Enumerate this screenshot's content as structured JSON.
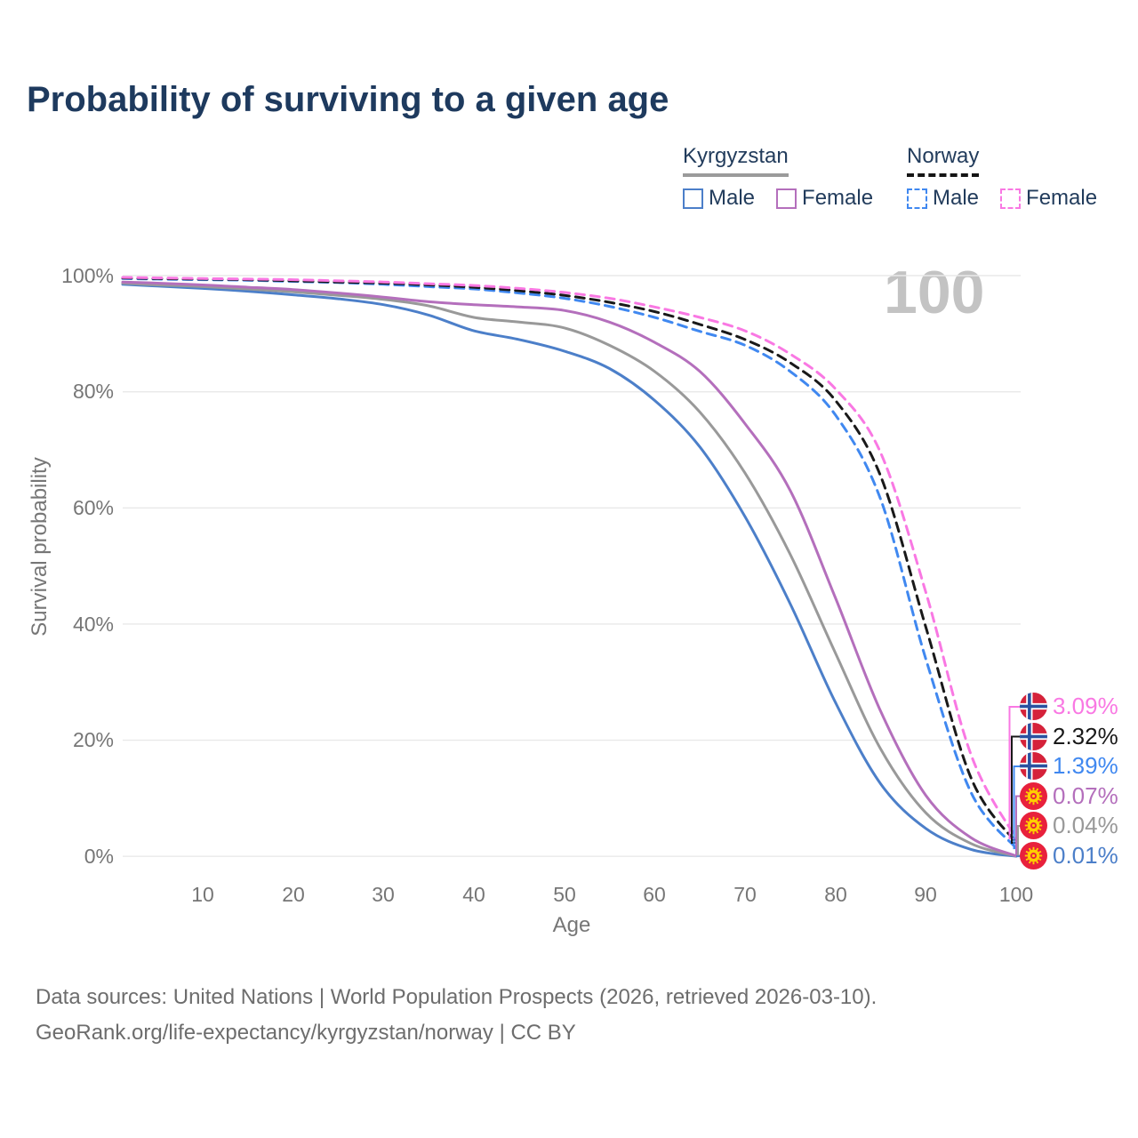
{
  "chart_data": {
    "type": "line",
    "title": "Probability of surviving to a given age",
    "xlabel": "Age",
    "ylabel": "Survival probability",
    "age_watermark": "100",
    "xlim": [
      0,
      100
    ],
    "ylim": [
      0,
      100
    ],
    "grid": "horizontal-only",
    "legend_position": "top-right",
    "x_ticks": [
      "10",
      "20",
      "30",
      "40",
      "50",
      "60",
      "70",
      "80",
      "90",
      "100"
    ],
    "y_ticks": [
      "100%",
      "80%",
      "60%",
      "40%",
      "20%",
      "0%"
    ],
    "x": [
      0,
      5,
      10,
      15,
      20,
      25,
      30,
      35,
      40,
      45,
      50,
      55,
      60,
      65,
      70,
      75,
      80,
      85,
      90,
      95,
      100
    ],
    "series": [
      {
        "id": "norway-female",
        "country": "Norway",
        "sex": "Female",
        "style": "dashed",
        "color": "#f978e3",
        "flag": "norway",
        "end_label": "3.09%",
        "values": [
          99.7,
          99.6,
          99.5,
          99.4,
          99.3,
          99.1,
          98.9,
          98.6,
          98.3,
          97.8,
          97.1,
          96.1,
          94.6,
          92.8,
          90.5,
          86.5,
          80.5,
          69.5,
          45.5,
          17.5,
          3.09
        ]
      },
      {
        "id": "norway-both-sexes",
        "country": "Norway",
        "sex": "Both sexes",
        "style": "dashed",
        "color": "#191919",
        "flag": "norway",
        "end_label": "2.32%",
        "values": [
          99.6,
          99.5,
          99.4,
          99.3,
          99.1,
          98.9,
          98.7,
          98.4,
          98.0,
          97.4,
          96.6,
          95.4,
          93.8,
          91.6,
          89.0,
          85.0,
          78.5,
          65.5,
          39.5,
          13.5,
          2.32
        ]
      },
      {
        "id": "norway-male",
        "country": "Norway",
        "sex": "Male",
        "style": "dashed",
        "color": "#4088f0",
        "flag": "norway",
        "end_label": "1.39%",
        "values": [
          99.5,
          99.4,
          99.3,
          99.2,
          99.0,
          98.8,
          98.5,
          98.1,
          97.7,
          97.0,
          96.1,
          94.7,
          92.8,
          90.4,
          88.0,
          83.5,
          76.0,
          61.5,
          34.0,
          11.0,
          1.39
        ]
      },
      {
        "id": "kyrgyzstan-female",
        "country": "Kyrgyzstan",
        "sex": "Female",
        "style": "solid",
        "color": "#b46fbc",
        "flag": "kyrgyzstan",
        "end_label": "0.07%",
        "values": [
          98.9,
          98.7,
          98.4,
          98.0,
          97.6,
          97.0,
          96.3,
          95.5,
          95.0,
          94.6,
          94.0,
          92.0,
          88.5,
          83.5,
          74.5,
          63.0,
          44.5,
          25.0,
          10.5,
          3.2,
          0.07
        ]
      },
      {
        "id": "kyrgyzstan-both-sexes",
        "country": "Kyrgyzstan",
        "sex": "Both sexes",
        "style": "solid",
        "color": "#999999",
        "flag": "kyrgyzstan",
        "end_label": "0.04%",
        "values": [
          98.7,
          98.4,
          98.1,
          97.7,
          97.2,
          96.6,
          95.9,
          94.8,
          92.8,
          92.0,
          91.0,
          88.0,
          83.5,
          76.5,
          66.0,
          52.0,
          35.0,
          18.5,
          7.5,
          2.2,
          0.04
        ]
      },
      {
        "id": "kyrgyzstan-male",
        "country": "Kyrgyzstan",
        "sex": "Male",
        "style": "solid",
        "color": "#4c7fc9",
        "flag": "kyrgyzstan",
        "end_label": "0.01%",
        "values": [
          98.5,
          98.2,
          97.8,
          97.3,
          96.7,
          96.0,
          95.0,
          93.2,
          90.5,
          89.0,
          87.0,
          84.0,
          78.5,
          70.5,
          58.5,
          43.5,
          26.5,
          12.5,
          4.8,
          1.2,
          0.01
        ]
      }
    ]
  },
  "legend": {
    "groups": [
      {
        "country": "Kyrgyzstan",
        "items": [
          {
            "label": "Male"
          },
          {
            "label": "Female"
          }
        ]
      },
      {
        "country": "Norway",
        "items": [
          {
            "label": "Male"
          },
          {
            "label": "Female"
          }
        ]
      }
    ]
  },
  "footer": {
    "line1": "Data sources: United Nations | World Population Prospects (2026, retrieved 2026-03-10).",
    "line2": "GeoRank.org/life-expectancy/kyrgyzstan/norway | CC BY"
  },
  "colors": {
    "title": "#1e3a5e",
    "axis_text": "#767676",
    "gridline": "#e9e9e9",
    "watermark": "#c3c3c3",
    "norway_flag_red": "#d5223a",
    "norway_flag_blue": "#2a52a0",
    "kyrgyzstan_flag_red": "#e8213c",
    "kyrgyzstan_flag_yellow": "#ffcf00"
  }
}
